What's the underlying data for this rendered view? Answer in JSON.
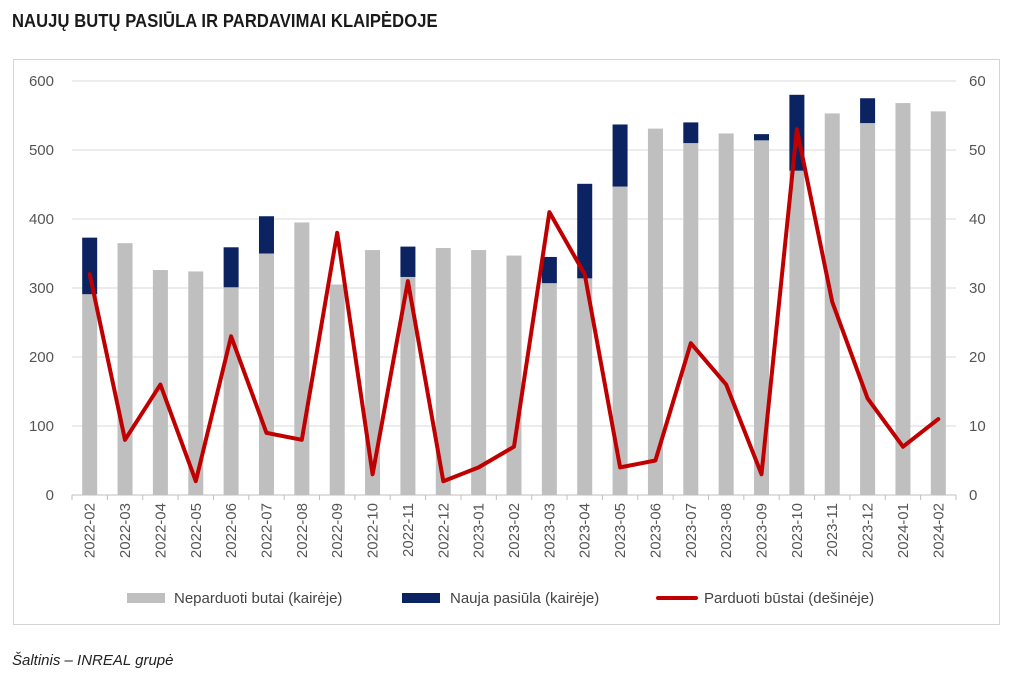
{
  "title": "NAUJŲ BUTŲ PASIŪLA IR PARDAVIMAI KLAIPĖDOJE",
  "source": "Šaltinis – INREAL grupė",
  "chart_data": {
    "type": "bar",
    "categories": [
      "2022-02",
      "2022-03",
      "2022-04",
      "2022-05",
      "2022-06",
      "2022-07",
      "2022-08",
      "2022-09",
      "2022-10",
      "2022-11",
      "2022-12",
      "2023-01",
      "2023-02",
      "2023-03",
      "2023-04",
      "2023-05",
      "2023-06",
      "2023-07",
      "2023-08",
      "2023-09",
      "2023-10",
      "2023-11",
      "2023-12",
      "2024-01",
      "2024-02"
    ],
    "series": [
      {
        "name": "Neparduoti butai (kairėje)",
        "kind": "bar",
        "axis": "left",
        "color": "#bfbfbf",
        "values": [
          291,
          365,
          326,
          324,
          301,
          350,
          395,
          305,
          355,
          316,
          358,
          355,
          347,
          307,
          314,
          447,
          531,
          510,
          524,
          514,
          470,
          553,
          539,
          568,
          556
        ]
      },
      {
        "name": "Nauja pasiūla (kairėje)",
        "kind": "stacked-bar",
        "axis": "left",
        "color": "#0b2461",
        "values": [
          82,
          0,
          0,
          0,
          58,
          54,
          0,
          0,
          0,
          44,
          0,
          0,
          0,
          38,
          137,
          90,
          0,
          30,
          0,
          9,
          110,
          0,
          36,
          0,
          0
        ]
      },
      {
        "name": "Parduoti būstai (dešinėje)",
        "kind": "line",
        "axis": "right",
        "color": "#c00000",
        "values": [
          32,
          8,
          16,
          2,
          23,
          9,
          8,
          38,
          3,
          31,
          2,
          4,
          7,
          41,
          32,
          4,
          5,
          22,
          16,
          3,
          53,
          28,
          14,
          7,
          11
        ]
      }
    ],
    "y_left": {
      "min": 0,
      "max": 600,
      "ticks": [
        0,
        100,
        200,
        300,
        400,
        500,
        600
      ]
    },
    "y_right": {
      "min": 0,
      "max": 60,
      "ticks": [
        0,
        10,
        20,
        30,
        40,
        50,
        60
      ]
    },
    "grid": true,
    "legend": "bottom"
  }
}
